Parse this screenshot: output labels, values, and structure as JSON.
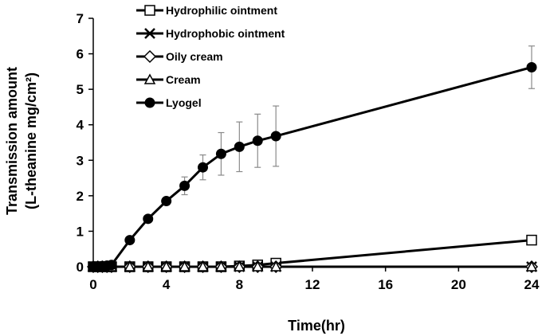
{
  "chart_data": {
    "type": "line",
    "title": "",
    "xlabel": "Time(hr)",
    "ylabel": {
      "line1": "Transmission amount",
      "line2": "(L-theanine mg/cm²)"
    },
    "xlim": [
      0,
      24
    ],
    "ylim": [
      0,
      7
    ],
    "xticks": [
      "0",
      "4",
      "8",
      "12",
      "16",
      "20",
      "24"
    ],
    "xtick_values": [
      0,
      4,
      8,
      12,
      16,
      20,
      24
    ],
    "yticks": [
      "0",
      "1",
      "2",
      "3",
      "4",
      "5",
      "6",
      "7"
    ],
    "ytick_values": [
      0,
      1,
      2,
      3,
      4,
      5,
      6,
      7
    ],
    "grid": false,
    "legend_position": "top-left",
    "series": [
      {
        "name": "Hydrophilic ointment",
        "marker": "open-square",
        "x": [
          0,
          0.25,
          0.5,
          0.75,
          1,
          2,
          3,
          4,
          5,
          6,
          7,
          8,
          9,
          10,
          24
        ],
        "values": [
          0,
          0,
          0,
          0,
          0,
          0,
          0,
          0,
          0,
          0,
          0,
          0.02,
          0.05,
          0.1,
          0.75
        ]
      },
      {
        "name": "Hydrophobic ointment",
        "marker": "cross",
        "x": [
          0,
          0.25,
          0.5,
          0.75,
          1,
          2,
          3,
          4,
          5,
          6,
          7,
          8,
          9,
          10,
          24
        ],
        "values": [
          0,
          0,
          0,
          0,
          0,
          0,
          0,
          0,
          0,
          0,
          0,
          0,
          0,
          0,
          0
        ]
      },
      {
        "name": "Oily cream",
        "marker": "open-diamond",
        "x": [
          0,
          0.25,
          0.5,
          0.75,
          1,
          2,
          3,
          4,
          5,
          6,
          7,
          8,
          9,
          10,
          24
        ],
        "values": [
          0,
          0,
          0,
          0,
          0,
          0,
          0,
          0,
          0,
          0,
          0,
          0,
          0,
          0,
          0
        ]
      },
      {
        "name": "Cream",
        "marker": "open-triangle",
        "x": [
          0,
          0.25,
          0.5,
          0.75,
          1,
          2,
          3,
          4,
          5,
          6,
          7,
          8,
          9,
          10,
          24
        ],
        "values": [
          0,
          0,
          0,
          0,
          0,
          0,
          0,
          0,
          0,
          0,
          0,
          0,
          0,
          0,
          0
        ]
      },
      {
        "name": "Lyogel",
        "marker": "filled-circle",
        "x": [
          0,
          0.25,
          0.5,
          0.75,
          1,
          2,
          3,
          4,
          5,
          6,
          7,
          8,
          9,
          10,
          24
        ],
        "values": [
          0,
          0,
          0.02,
          0.03,
          0.05,
          0.75,
          1.35,
          1.85,
          2.28,
          2.8,
          3.18,
          3.38,
          3.55,
          3.68,
          5.62
        ],
        "error": [
          0,
          0,
          0,
          0,
          0,
          0,
          0,
          0,
          0.25,
          0.35,
          0.6,
          0.7,
          0.75,
          0.85,
          0.6
        ]
      }
    ]
  }
}
